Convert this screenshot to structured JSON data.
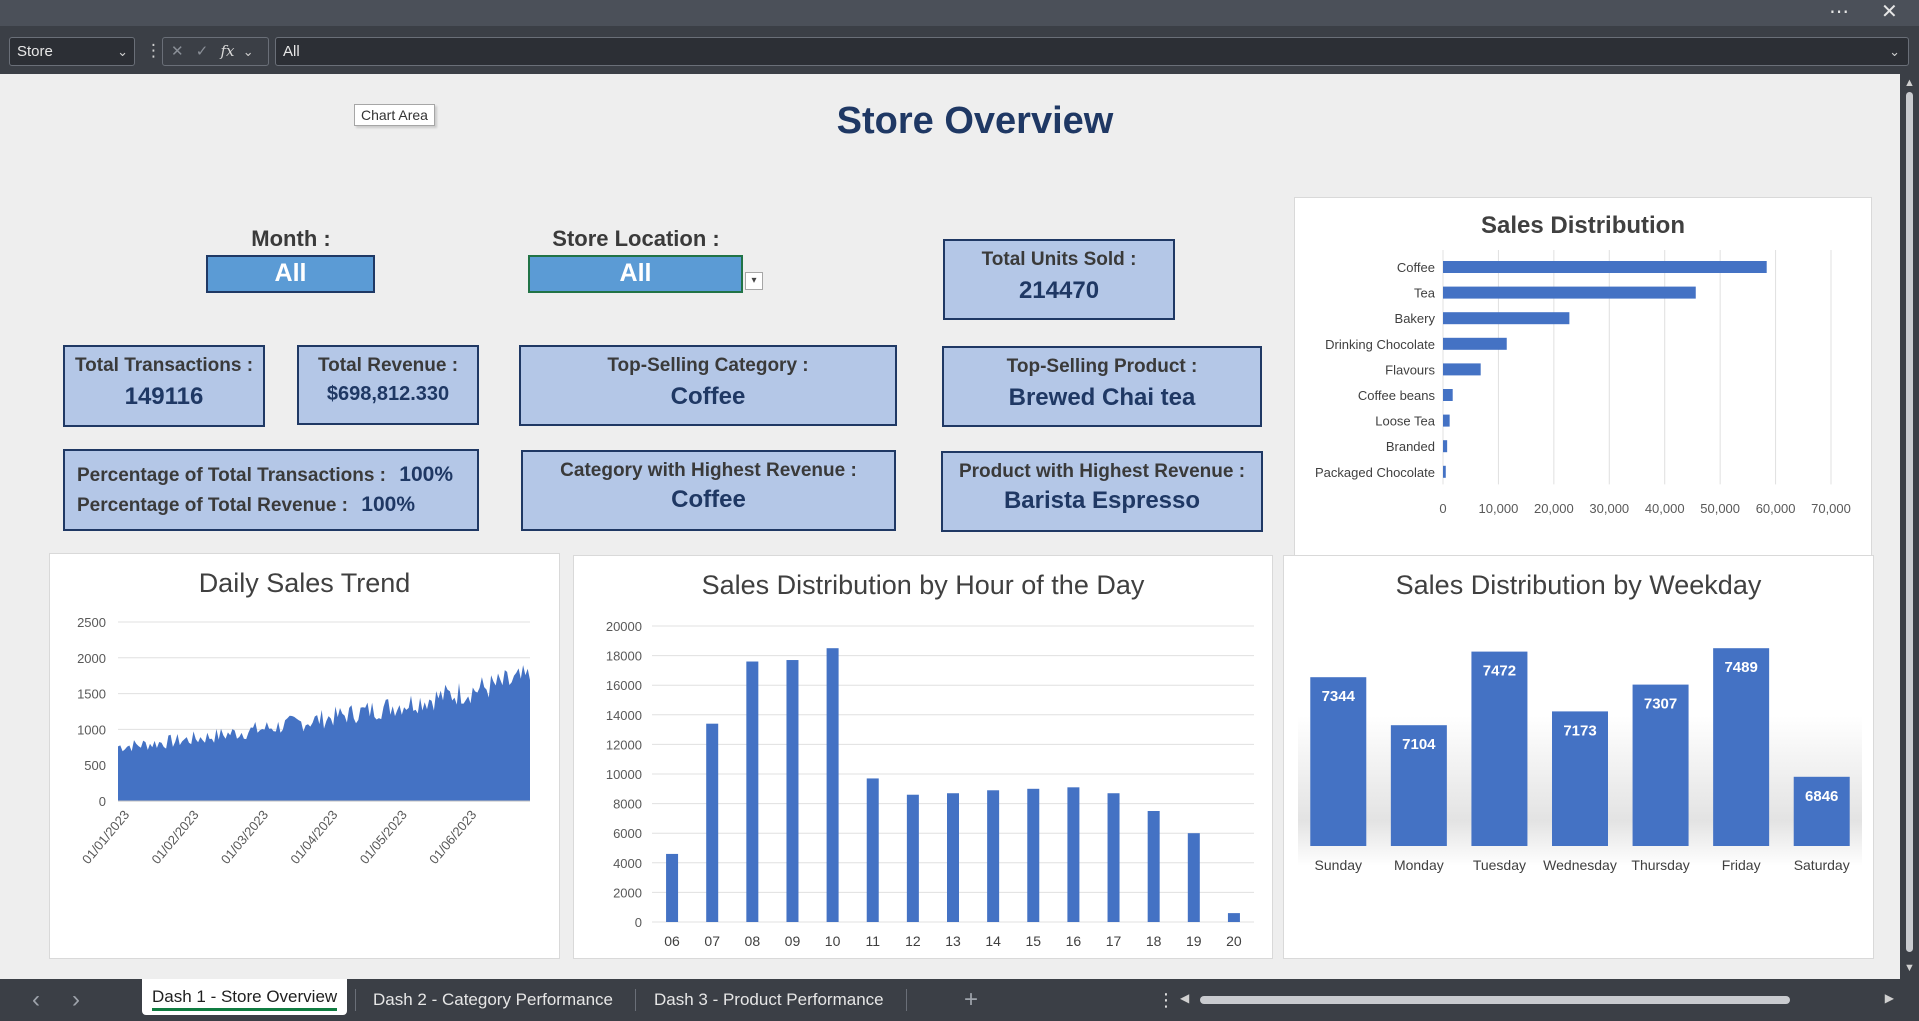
{
  "window": {
    "more_icon": "ellipsis-icon",
    "close_icon": "close-icon"
  },
  "formula_bar": {
    "name_box": "Store",
    "formula_value": "All"
  },
  "dashboard": {
    "title": "Store Overview",
    "tooltip": "Chart Area",
    "month_label": "Month :",
    "month_value": "All",
    "store_label": "Store Location :",
    "store_value": "All",
    "cards": {
      "total_units_label": "Total Units Sold :",
      "total_units_value": "214470",
      "total_transactions_label": "Total Transactions :",
      "total_transactions_value": "149116",
      "total_revenue_label": "Total Revenue :",
      "total_revenue_value": "$698,812.330",
      "top_category_label": "Top-Selling Category :",
      "top_category_value": "Coffee",
      "top_product_label": "Top-Selling Product :",
      "top_product_value": "Brewed Chai tea",
      "pct_transactions_label": "Percentage of Total Transactions :",
      "pct_transactions_value": "100%",
      "pct_revenue_label": "Percentage of Total Revenue :",
      "pct_revenue_value": "100%",
      "cat_highest_rev_label": "Category with Highest Revenue :",
      "cat_highest_rev_value": "Coffee",
      "prod_highest_rev_label": "Product with Highest Revenue :",
      "prod_highest_rev_value": "Barista Espresso"
    }
  },
  "chart_data": [
    {
      "type": "bar",
      "orientation": "horizontal",
      "title": "Sales Distribution",
      "categories": [
        "Coffee",
        "Tea",
        "Bakery",
        "Drinking Chocolate",
        "Flavours",
        "Coffee beans",
        "Loose Tea",
        "Branded",
        "Packaged Chocolate"
      ],
      "values": [
        58400,
        45600,
        22800,
        11500,
        6800,
        1750,
        1200,
        750,
        500
      ],
      "xlim": [
        0,
        70000
      ],
      "xticks": [
        "0",
        "10,000",
        "20,000",
        "30,000",
        "40,000",
        "50,000",
        "60,000",
        "70,000"
      ],
      "color": "#4472c4"
    },
    {
      "type": "area",
      "title": "Daily Sales Trend",
      "x_start": "01/01/2023",
      "x_end": "30/06/2023",
      "xticks": [
        "01/01/2023",
        "01/02/2023",
        "01/03/2023",
        "01/04/2023",
        "01/05/2023",
        "01/06/2023"
      ],
      "ylim": [
        0,
        2500
      ],
      "yticks": [
        "0",
        "500",
        "1000",
        "1500",
        "2000",
        "2500"
      ],
      "trend_start": 780,
      "trend_end": 1750,
      "color": "#4472c4"
    },
    {
      "type": "bar",
      "title": "Sales Distribution by Hour of the Day",
      "categories": [
        "06",
        "07",
        "08",
        "09",
        "10",
        "11",
        "12",
        "13",
        "14",
        "15",
        "16",
        "17",
        "18",
        "19",
        "20"
      ],
      "values": [
        4600,
        13400,
        17600,
        17700,
        18500,
        9700,
        8600,
        8700,
        8900,
        9000,
        9100,
        8700,
        7500,
        6000,
        600
      ],
      "ylim": [
        0,
        20000
      ],
      "yticks": [
        "0",
        "2000",
        "4000",
        "6000",
        "8000",
        "10000",
        "12000",
        "14000",
        "16000",
        "18000",
        "20000"
      ],
      "color": "#4472c4"
    },
    {
      "type": "bar",
      "title": "Sales Distribution by Weekday",
      "categories": [
        "Sunday",
        "Monday",
        "Tuesday",
        "Wednesday",
        "Thursday",
        "Friday",
        "Saturday"
      ],
      "values": [
        7344,
        7104,
        7472,
        7173,
        7307,
        7489,
        6846
      ],
      "labels": [
        "7344",
        "7104",
        "7472",
        "7173",
        "7307",
        "7489",
        "6846"
      ],
      "ylim": [
        6500,
        7550
      ],
      "color": "#4472c4"
    }
  ],
  "sheet_tabs": [
    {
      "label": "Dash 1 - Store Overview",
      "active": true
    },
    {
      "label": "Dash 2 - Category Performance",
      "active": false
    },
    {
      "label": "Dash 3 - Product Performance",
      "active": false
    }
  ],
  "tab_controls": {
    "prev": "‹",
    "next": "›",
    "add": "+",
    "more": "⋮"
  }
}
